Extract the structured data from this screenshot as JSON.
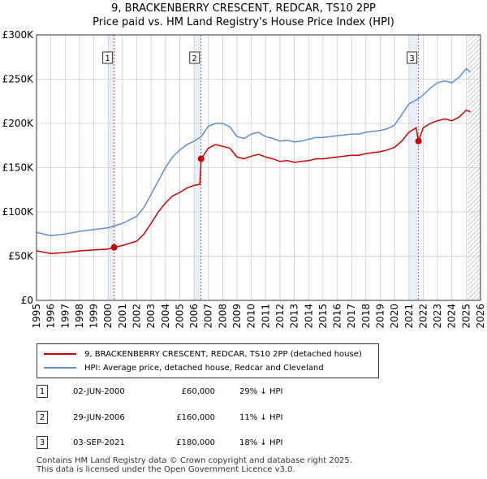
{
  "title_line1": "9, BRACKENBERRY CRESCENT, REDCAR, TS10 2PP",
  "title_line2": "Price paid vs. HM Land Registry's House Price Index (HPI)",
  "colors": {
    "property": "#cc0000",
    "hpi": "#5b8fd6",
    "highlight": "#e8eefa",
    "grid": "#cccccc"
  },
  "chart_data": {
    "type": "line",
    "xlim": [
      1995,
      2026
    ],
    "ylim": [
      0,
      300000
    ],
    "y_ticks": [
      0,
      50000,
      100000,
      150000,
      200000,
      250000,
      300000
    ],
    "y_tick_labels": [
      "£0",
      "£50K",
      "£100K",
      "£150K",
      "£200K",
      "£250K",
      "£300K"
    ],
    "x_tick_labels": [
      "1995",
      "1996",
      "1997",
      "1998",
      "1999",
      "2000",
      "2001",
      "2002",
      "2003",
      "2004",
      "2005",
      "2006",
      "2007",
      "2008",
      "2009",
      "2010",
      "2011",
      "2012",
      "2013",
      "2014",
      "2015",
      "2016",
      "2017",
      "2018",
      "2019",
      "2020",
      "2021",
      "2022",
      "2023",
      "2024",
      "2025",
      "2026"
    ],
    "highlight_ranges": [
      [
        2000.0,
        2000.42
      ],
      [
        2006.0,
        2006.5
      ],
      [
        2021.0,
        2021.67
      ]
    ],
    "future_hatch_from": 2025.1,
    "series": [
      {
        "name": "9, BRACKENBERRY CRESCENT, REDCAR, TS10 2PP (detached house)",
        "color": "#cc0000",
        "points": [
          [
            1995.0,
            56000
          ],
          [
            1996.0,
            53000
          ],
          [
            1997.0,
            54000
          ],
          [
            1998.0,
            56000
          ],
          [
            1999.0,
            57000
          ],
          [
            2000.0,
            58000
          ],
          [
            2000.42,
            60000
          ],
          [
            2001.0,
            62000
          ],
          [
            2002.0,
            67000
          ],
          [
            2002.5,
            75000
          ],
          [
            2003.0,
            87000
          ],
          [
            2003.5,
            100000
          ],
          [
            2004.0,
            110000
          ],
          [
            2004.5,
            118000
          ],
          [
            2005.0,
            122000
          ],
          [
            2005.5,
            127000
          ],
          [
            2006.0,
            130000
          ],
          [
            2006.4,
            131000
          ],
          [
            2006.5,
            160000
          ],
          [
            2007.0,
            172000
          ],
          [
            2007.5,
            176000
          ],
          [
            2008.0,
            174000
          ],
          [
            2008.5,
            172000
          ],
          [
            2009.0,
            162000
          ],
          [
            2009.5,
            160000
          ],
          [
            2010.0,
            163000
          ],
          [
            2010.5,
            165000
          ],
          [
            2011.0,
            162000
          ],
          [
            2011.5,
            160000
          ],
          [
            2012.0,
            157000
          ],
          [
            2012.5,
            158000
          ],
          [
            2013.0,
            156000
          ],
          [
            2013.5,
            157000
          ],
          [
            2014.0,
            158000
          ],
          [
            2014.5,
            160000
          ],
          [
            2015.0,
            160000
          ],
          [
            2015.5,
            161000
          ],
          [
            2016.0,
            162000
          ],
          [
            2016.5,
            163000
          ],
          [
            2017.0,
            164000
          ],
          [
            2017.5,
            164000
          ],
          [
            2018.0,
            166000
          ],
          [
            2018.5,
            167000
          ],
          [
            2019.0,
            168000
          ],
          [
            2019.5,
            170000
          ],
          [
            2020.0,
            173000
          ],
          [
            2020.5,
            180000
          ],
          [
            2021.0,
            190000
          ],
          [
            2021.5,
            195000
          ],
          [
            2021.67,
            180000
          ],
          [
            2022.0,
            195000
          ],
          [
            2022.5,
            200000
          ],
          [
            2023.0,
            203000
          ],
          [
            2023.5,
            205000
          ],
          [
            2024.0,
            203000
          ],
          [
            2024.5,
            207000
          ],
          [
            2025.0,
            215000
          ],
          [
            2025.3,
            213000
          ]
        ]
      },
      {
        "name": "HPI: Average price, detached house, Redcar and Cleveland",
        "color": "#5b8fd6",
        "points": [
          [
            1995.0,
            77000
          ],
          [
            1996.0,
            73000
          ],
          [
            1997.0,
            75000
          ],
          [
            1998.0,
            78000
          ],
          [
            1999.0,
            80000
          ],
          [
            2000.0,
            82000
          ],
          [
            2000.42,
            84000
          ],
          [
            2001.0,
            87000
          ],
          [
            2002.0,
            95000
          ],
          [
            2002.5,
            105000
          ],
          [
            2003.0,
            120000
          ],
          [
            2003.5,
            135000
          ],
          [
            2004.0,
            150000
          ],
          [
            2004.5,
            162000
          ],
          [
            2005.0,
            170000
          ],
          [
            2005.5,
            176000
          ],
          [
            2006.0,
            180000
          ],
          [
            2006.5,
            185000
          ],
          [
            2007.0,
            197000
          ],
          [
            2007.5,
            200000
          ],
          [
            2008.0,
            200000
          ],
          [
            2008.5,
            196000
          ],
          [
            2009.0,
            185000
          ],
          [
            2009.5,
            183000
          ],
          [
            2010.0,
            188000
          ],
          [
            2010.5,
            190000
          ],
          [
            2011.0,
            185000
          ],
          [
            2011.5,
            183000
          ],
          [
            2012.0,
            180000
          ],
          [
            2012.5,
            181000
          ],
          [
            2013.0,
            179000
          ],
          [
            2013.5,
            180000
          ],
          [
            2014.0,
            182000
          ],
          [
            2014.5,
            184000
          ],
          [
            2015.0,
            184000
          ],
          [
            2015.5,
            185000
          ],
          [
            2016.0,
            186000
          ],
          [
            2016.5,
            187000
          ],
          [
            2017.0,
            188000
          ],
          [
            2017.5,
            188000
          ],
          [
            2018.0,
            190000
          ],
          [
            2018.5,
            191000
          ],
          [
            2019.0,
            192000
          ],
          [
            2019.5,
            194000
          ],
          [
            2020.0,
            198000
          ],
          [
            2020.5,
            210000
          ],
          [
            2021.0,
            222000
          ],
          [
            2021.67,
            228000
          ],
          [
            2022.0,
            232000
          ],
          [
            2022.5,
            240000
          ],
          [
            2023.0,
            246000
          ],
          [
            2023.5,
            248000
          ],
          [
            2024.0,
            246000
          ],
          [
            2024.5,
            252000
          ],
          [
            2025.0,
            262000
          ],
          [
            2025.3,
            258000
          ]
        ]
      }
    ],
    "sales": [
      {
        "label": "1",
        "x": 2000.42,
        "price": 60000
      },
      {
        "label": "2",
        "x": 2006.49,
        "price": 160000
      },
      {
        "label": "3",
        "x": 2021.67,
        "price": 180000
      }
    ]
  },
  "legend": {
    "property": "9, BRACKENBERRY CRESCENT, REDCAR, TS10 2PP (detached house)",
    "hpi": "HPI: Average price, detached house, Redcar and Cleveland"
  },
  "sales_table": [
    {
      "num": "1",
      "date": "02-JUN-2000",
      "price": "£60,000",
      "hpi": "29% ↓ HPI"
    },
    {
      "num": "2",
      "date": "29-JUN-2006",
      "price": "£160,000",
      "hpi": "11% ↓ HPI"
    },
    {
      "num": "3",
      "date": "03-SEP-2021",
      "price": "£180,000",
      "hpi": "18% ↓ HPI"
    }
  ],
  "footer_line1": "Contains HM Land Registry data © Crown copyright and database right 2025.",
  "footer_line2": "This data is licensed under the Open Government Licence v3.0."
}
